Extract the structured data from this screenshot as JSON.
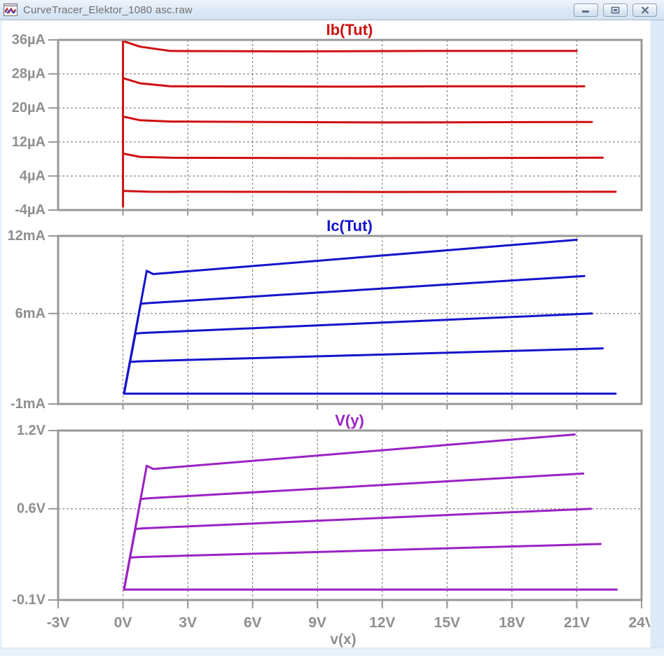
{
  "window": {
    "title": "CurveTracer_Elektor_1080 asc.raw",
    "icon": "waveform-icon",
    "controls": [
      {
        "name": "minimize"
      },
      {
        "name": "restore"
      },
      {
        "name": "close"
      }
    ]
  },
  "colors": {
    "axis": "#989898",
    "grid": "#707070",
    "label": "#8f8f8f",
    "titlebar_text": "#707070"
  },
  "chart_data": {
    "type": "line",
    "shared_xaxis": {
      "label": "v(x)",
      "xlim": [
        -3,
        24
      ],
      "ticks": [
        {
          "v": -3,
          "label": "-3V"
        },
        {
          "v": 0,
          "label": "0V"
        },
        {
          "v": 3,
          "label": "3V"
        },
        {
          "v": 6,
          "label": "6V"
        },
        {
          "v": 9,
          "label": "9V"
        },
        {
          "v": 12,
          "label": "12V"
        },
        {
          "v": 15,
          "label": "15V"
        },
        {
          "v": 18,
          "label": "18V"
        },
        {
          "v": 21,
          "label": "21V"
        },
        {
          "v": 24,
          "label": "24V"
        }
      ],
      "gridlines": [
        0,
        3,
        6,
        9,
        12,
        15,
        18,
        21
      ]
    },
    "plots": [
      {
        "key": "ib-tut",
        "title": "Ib(Tut)",
        "color": "#ce1010",
        "unit": "µA",
        "ylim": [
          -4,
          36
        ],
        "yticks": [
          {
            "v": 36,
            "label": "36µA",
            "grid": false
          },
          {
            "v": 28,
            "label": "28µA",
            "grid": true
          },
          {
            "v": 20,
            "label": "20µA",
            "grid": true
          },
          {
            "v": 12,
            "label": "12µA",
            "grid": true
          },
          {
            "v": 4,
            "label": "4µA",
            "grid": true
          },
          {
            "v": -4,
            "label": "-4µA",
            "grid": false
          }
        ],
        "series": [
          {
            "name": "ib-sweep-retrace",
            "points": [
              [
                0,
                35.7
              ],
              [
                0,
                -3.2
              ]
            ]
          },
          {
            "name": "ib-step5",
            "points": [
              [
                0.08,
                35.6
              ],
              [
                0.8,
                34.4
              ],
              [
                2.2,
                33.4
              ],
              [
                8,
                33.3
              ],
              [
                14,
                33.4
              ],
              [
                21.0,
                33.4
              ]
            ]
          },
          {
            "name": "ib-step4",
            "points": [
              [
                0.08,
                26.9
              ],
              [
                0.8,
                25.8
              ],
              [
                2.2,
                25.1
              ],
              [
                10,
                25.0
              ],
              [
                16,
                25.1
              ],
              [
                21.35,
                25.1
              ]
            ]
          },
          {
            "name": "ib-step3",
            "points": [
              [
                0.08,
                17.9
              ],
              [
                0.8,
                17.1
              ],
              [
                2.2,
                16.8
              ],
              [
                12,
                16.6
              ],
              [
                21.7,
                16.7
              ]
            ]
          },
          {
            "name": "ib-step2",
            "points": [
              [
                0.08,
                9.2
              ],
              [
                0.8,
                8.5
              ],
              [
                2.2,
                8.3
              ],
              [
                12,
                8.2
              ],
              [
                22.2,
                8.3
              ]
            ]
          },
          {
            "name": "ib-step1",
            "points": [
              [
                0.08,
                0.5
              ],
              [
                1.2,
                0.3
              ],
              [
                12,
                0.25
              ],
              [
                22.8,
                0.3
              ]
            ]
          }
        ]
      },
      {
        "key": "ic-tut",
        "title": "Ic(Tut)",
        "color": "#1414cc",
        "unit": "mA",
        "ylim": [
          -1,
          12
        ],
        "yticks": [
          {
            "v": 12,
            "label": "12mA",
            "grid": false
          },
          {
            "v": 6,
            "label": "6mA",
            "grid": true
          },
          {
            "v": -1,
            "label": "-1mA",
            "grid": false
          }
        ],
        "series": [
          {
            "name": "ic-step5",
            "points": [
              [
                0.05,
                -0.2
              ],
              [
                1.1,
                9.3
              ],
              [
                1.4,
                9.05
              ],
              [
                21.0,
                11.7
              ]
            ]
          },
          {
            "name": "ic-step4",
            "points": [
              [
                0.05,
                -0.2
              ],
              [
                0.82,
                6.75
              ],
              [
                1.15,
                6.8
              ],
              [
                21.35,
                8.9
              ]
            ]
          },
          {
            "name": "ic-step3",
            "points": [
              [
                0.05,
                -0.2
              ],
              [
                0.58,
                4.45
              ],
              [
                0.95,
                4.5
              ],
              [
                21.7,
                6.0
              ]
            ]
          },
          {
            "name": "ic-step2",
            "points": [
              [
                0.05,
                -0.2
              ],
              [
                0.32,
                2.25
              ],
              [
                0.75,
                2.3
              ],
              [
                22.2,
                3.3
              ]
            ]
          },
          {
            "name": "ic-step1",
            "points": [
              [
                0.05,
                -0.2
              ],
              [
                22.8,
                -0.2
              ]
            ]
          }
        ]
      },
      {
        "key": "v-y",
        "title": "V(y)",
        "color": "#9b22c4",
        "unit": "V",
        "ylim": [
          -0.1,
          1.2
        ],
        "yticks": [
          {
            "v": 1.2,
            "label": "1.2V",
            "grid": false
          },
          {
            "v": 0.6,
            "label": "0.6V",
            "grid": true
          },
          {
            "v": -0.1,
            "label": "-0.1V",
            "grid": false
          }
        ],
        "series": [
          {
            "name": "vy-step5",
            "points": [
              [
                0.05,
                -0.02
              ],
              [
                1.1,
                0.93
              ],
              [
                1.4,
                0.905
              ],
              [
                20.9,
                1.17
              ]
            ]
          },
          {
            "name": "vy-step4",
            "points": [
              [
                0.05,
                -0.02
              ],
              [
                0.82,
                0.675
              ],
              [
                1.15,
                0.68
              ],
              [
                21.3,
                0.87
              ]
            ]
          },
          {
            "name": "vy-step3",
            "points": [
              [
                0.05,
                -0.02
              ],
              [
                0.58,
                0.445
              ],
              [
                0.95,
                0.45
              ],
              [
                21.65,
                0.6
              ]
            ]
          },
          {
            "name": "vy-step2",
            "points": [
              [
                0.05,
                -0.02
              ],
              [
                0.32,
                0.225
              ],
              [
                0.75,
                0.23
              ],
              [
                22.1,
                0.33
              ]
            ]
          },
          {
            "name": "vy-step1",
            "points": [
              [
                0.05,
                -0.02
              ],
              [
                22.85,
                -0.02
              ]
            ]
          }
        ]
      }
    ]
  }
}
